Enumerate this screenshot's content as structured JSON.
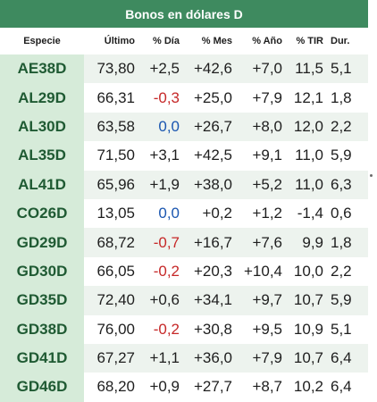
{
  "title": "Bonos en dólares D",
  "columns": {
    "especie": "Especie",
    "ultimo": "Último",
    "dia": "% Día",
    "mes": "% Mes",
    "anio": "% Año",
    "tir": "% TIR",
    "dur": "Dur."
  },
  "colors": {
    "header_bg": "#3e8a5f",
    "ticker_bg": "#d6ebd9",
    "ticker_text": "#1f5a33",
    "negative": "#c62828",
    "zero": "#1a56b0"
  },
  "rows": [
    {
      "especie": "AE38D",
      "ultimo": "73,80",
      "dia": "+2,5",
      "mes": "+42,6",
      "anio": "+7,0",
      "tir": "11,5",
      "dur": "5,1"
    },
    {
      "especie": "AL29D",
      "ultimo": "66,31",
      "dia": "-0,3",
      "mes": "+25,0",
      "anio": "+7,9",
      "tir": "12,1",
      "dur": "1,8"
    },
    {
      "especie": "AL30D",
      "ultimo": "63,58",
      "dia": "0,0",
      "mes": "+26,7",
      "anio": "+8,0",
      "tir": "12,0",
      "dur": "2,2"
    },
    {
      "especie": "AL35D",
      "ultimo": "71,50",
      "dia": "+3,1",
      "mes": "+42,5",
      "anio": "+9,1",
      "tir": "11,0",
      "dur": "5,9"
    },
    {
      "especie": "AL41D",
      "ultimo": "65,96",
      "dia": "+1,9",
      "mes": "+38,0",
      "anio": "+5,2",
      "tir": "11,0",
      "dur": "6,3"
    },
    {
      "especie": "CO26D",
      "ultimo": "13,05",
      "dia": "0,0",
      "mes": "+0,2",
      "anio": "+1,2",
      "tir": "-1,4",
      "dur": "0,6"
    },
    {
      "especie": "GD29D",
      "ultimo": "68,72",
      "dia": "-0,7",
      "mes": "+16,7",
      "anio": "+7,6",
      "tir": "9,9",
      "dur": "1,8"
    },
    {
      "especie": "GD30D",
      "ultimo": "66,05",
      "dia": "-0,2",
      "mes": "+20,3",
      "anio": "+10,4",
      "tir": "10,0",
      "dur": "2,2"
    },
    {
      "especie": "GD35D",
      "ultimo": "72,40",
      "dia": "+0,6",
      "mes": "+34,1",
      "anio": "+9,7",
      "tir": "10,7",
      "dur": "5,9"
    },
    {
      "especie": "GD38D",
      "ultimo": "76,00",
      "dia": "-0,2",
      "mes": "+30,8",
      "anio": "+9,5",
      "tir": "10,9",
      "dur": "5,1"
    },
    {
      "especie": "GD41D",
      "ultimo": "67,27",
      "dia": "+1,1",
      "mes": "+36,0",
      "anio": "+7,9",
      "tir": "10,7",
      "dur": "6,4"
    },
    {
      "especie": "GD46D",
      "ultimo": "68,20",
      "dia": "+0,9",
      "mes": "+27,7",
      "anio": "+8,7",
      "tir": "10,2",
      "dur": "6,4"
    }
  ]
}
